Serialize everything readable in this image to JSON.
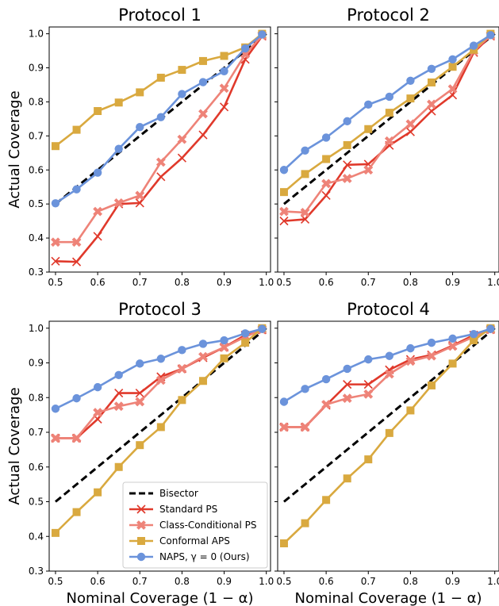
{
  "chart_data": [
    {
      "type": "line",
      "title": "Protocol 1",
      "xlabel": "",
      "ylabel": "Actual Coverage",
      "xlim": [
        0.485,
        1.01
      ],
      "ylim": [
        0.3,
        1.02
      ],
      "xticks": [
        "0.5",
        "0.6",
        "0.7",
        "0.8",
        "0.9",
        "1.0"
      ],
      "yticks": [
        "0.3",
        "0.4",
        "0.5",
        "0.6",
        "0.7",
        "0.8",
        "0.9",
        "1.0"
      ],
      "x": [
        0.5,
        0.55,
        0.6,
        0.65,
        0.7,
        0.75,
        0.8,
        0.85,
        0.9,
        0.95,
        0.99
      ],
      "series": [
        {
          "name": "Standard PS",
          "values": [
            0.332,
            0.33,
            0.405,
            0.5,
            0.503,
            0.58,
            0.635,
            0.703,
            0.785,
            0.925,
            0.993
          ]
        },
        {
          "name": "Class-Conditional PS",
          "values": [
            0.388,
            0.388,
            0.478,
            0.503,
            0.525,
            0.623,
            0.69,
            0.765,
            0.84,
            0.94,
            0.995
          ]
        },
        {
          "name": "Conformal APS",
          "values": [
            0.67,
            0.718,
            0.773,
            0.798,
            0.828,
            0.871,
            0.894,
            0.92,
            0.935,
            0.96,
            1.0
          ]
        },
        {
          "name": "NAPS, γ = 0 (Ours)",
          "values": [
            0.502,
            0.543,
            0.592,
            0.662,
            0.726,
            0.755,
            0.823,
            0.858,
            0.89,
            0.957,
            0.998
          ]
        }
      ]
    },
    {
      "type": "line",
      "title": "Protocol 2",
      "xlabel": "",
      "ylabel": "",
      "xlim": [
        0.485,
        1.01
      ],
      "ylim": [
        0.3,
        1.02
      ],
      "xticks": [
        "0.5",
        "0.6",
        "0.7",
        "0.8",
        "0.9",
        "1.0"
      ],
      "yticks": [],
      "x": [
        0.5,
        0.55,
        0.6,
        0.65,
        0.7,
        0.75,
        0.8,
        0.85,
        0.9,
        0.95,
        0.99
      ],
      "series": [
        {
          "name": "Standard PS",
          "values": [
            0.45,
            0.455,
            0.525,
            0.615,
            0.617,
            0.672,
            0.712,
            0.773,
            0.82,
            0.945,
            0.993
          ]
        },
        {
          "name": "Class-Conditional PS",
          "values": [
            0.478,
            0.475,
            0.56,
            0.575,
            0.6,
            0.685,
            0.735,
            0.793,
            0.838,
            0.95,
            0.995
          ]
        },
        {
          "name": "Conformal APS",
          "values": [
            0.535,
            0.588,
            0.632,
            0.673,
            0.72,
            0.768,
            0.81,
            0.857,
            0.903,
            0.953,
            1.0
          ]
        },
        {
          "name": "NAPS, γ = 0 (Ours)",
          "values": [
            0.6,
            0.657,
            0.695,
            0.743,
            0.792,
            0.815,
            0.862,
            0.897,
            0.925,
            0.965,
            0.996
          ]
        }
      ]
    },
    {
      "type": "line",
      "title": "Protocol 3",
      "xlabel": "Nominal Coverage (1 − α)",
      "ylabel": "Actual Coverage",
      "xlim": [
        0.485,
        1.01
      ],
      "ylim": [
        0.3,
        1.02
      ],
      "xticks": [
        "0.5",
        "0.6",
        "0.7",
        "0.8",
        "0.9",
        "1.0"
      ],
      "yticks": [
        "0.3",
        "0.4",
        "0.5",
        "0.6",
        "0.7",
        "0.8",
        "0.9",
        "1.0"
      ],
      "x": [
        0.5,
        0.55,
        0.6,
        0.65,
        0.7,
        0.75,
        0.8,
        0.85,
        0.9,
        0.95,
        0.99
      ],
      "series": [
        {
          "name": "Standard PS",
          "values": [
            0.683,
            0.683,
            0.738,
            0.813,
            0.813,
            0.86,
            0.883,
            0.915,
            0.945,
            0.98,
            0.995
          ]
        },
        {
          "name": "Class-Conditional PS",
          "values": [
            0.683,
            0.683,
            0.757,
            0.775,
            0.788,
            0.85,
            0.883,
            0.918,
            0.945,
            0.975,
            0.996
          ]
        },
        {
          "name": "Conformal APS",
          "values": [
            0.41,
            0.47,
            0.527,
            0.6,
            0.663,
            0.715,
            0.793,
            0.848,
            0.913,
            0.958,
            1.0
          ]
        },
        {
          "name": "NAPS, γ = 0 (Ours)",
          "values": [
            0.768,
            0.798,
            0.83,
            0.865,
            0.898,
            0.912,
            0.937,
            0.955,
            0.965,
            0.985,
            0.998
          ]
        }
      ]
    },
    {
      "type": "line",
      "title": "Protocol 4",
      "xlabel": "Nominal Coverage (1 − α)",
      "ylabel": "",
      "xlim": [
        0.485,
        1.01
      ],
      "ylim": [
        0.3,
        1.02
      ],
      "xticks": [
        "0.5",
        "0.6",
        "0.7",
        "0.8",
        "0.9",
        "1.0"
      ],
      "yticks": [],
      "x": [
        0.5,
        0.55,
        0.6,
        0.65,
        0.7,
        0.75,
        0.8,
        0.85,
        0.9,
        0.95,
        0.99
      ],
      "series": [
        {
          "name": "Standard PS",
          "values": [
            0.715,
            0.715,
            0.778,
            0.838,
            0.838,
            0.88,
            0.91,
            0.923,
            0.95,
            0.98,
            0.996
          ]
        },
        {
          "name": "Class-Conditional PS",
          "values": [
            0.715,
            0.715,
            0.78,
            0.798,
            0.81,
            0.868,
            0.905,
            0.92,
            0.948,
            0.975,
            0.996
          ]
        },
        {
          "name": "Conformal APS",
          "values": [
            0.38,
            0.438,
            0.505,
            0.567,
            0.622,
            0.698,
            0.763,
            0.835,
            0.898,
            0.965,
            1.0
          ]
        },
        {
          "name": "NAPS, γ = 0 (Ours)",
          "values": [
            0.788,
            0.825,
            0.853,
            0.883,
            0.91,
            0.92,
            0.942,
            0.958,
            0.97,
            0.983,
            0.998
          ]
        }
      ]
    }
  ],
  "legend": {
    "placement": "lower-right of Protocol 3",
    "entries": [
      {
        "label": "Bisector",
        "color": "#000000",
        "marker": "none",
        "dashed": true
      },
      {
        "label": "Standard PS",
        "color": "#e0392b",
        "marker": "x"
      },
      {
        "label": "Class-Conditional PS",
        "color": "#ee8378",
        "marker": "X"
      },
      {
        "label": "Conformal APS",
        "color": "#d9a93f",
        "marker": "square"
      },
      {
        "label": "NAPS, γ = 0 (Ours)",
        "color": "#6b93db",
        "marker": "circle"
      }
    ]
  },
  "colors": {
    "bisector": "#000000",
    "Standard PS": "#e0392b",
    "Class-Conditional PS": "#ee8378",
    "Conformal APS": "#d9a93f",
    "NAPS, γ = 0 (Ours)": "#6b93db"
  },
  "bisector": {
    "x": [
      0.5,
      1.0
    ],
    "y": [
      0.5,
      1.0
    ]
  }
}
